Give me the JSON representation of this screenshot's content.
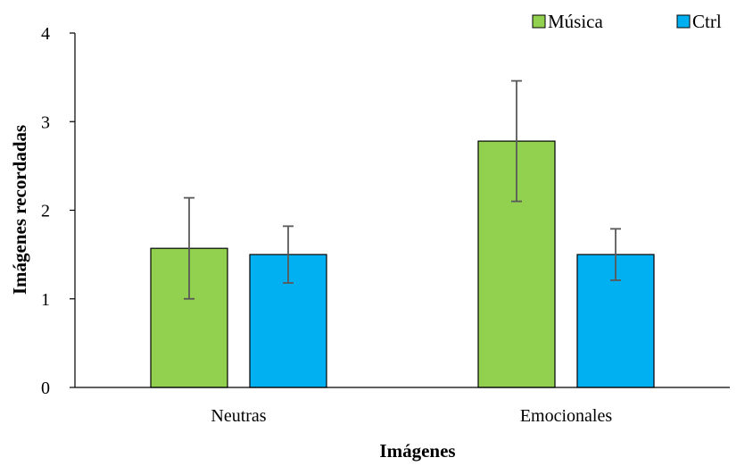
{
  "chart_data": {
    "type": "bar",
    "title": "",
    "xlabel": "Imágenes",
    "ylabel": "Imágenes recordadas",
    "categories": [
      "Neutras",
      "Emocionales"
    ],
    "series": [
      {
        "name": "Música",
        "color": "#92d050",
        "values": [
          1.57,
          2.78
        ],
        "errors": [
          0.57,
          0.68
        ]
      },
      {
        "name": "Ctrl",
        "color": "#00b0f0",
        "values": [
          1.5,
          1.5
        ],
        "errors": [
          0.32,
          0.29
        ]
      }
    ],
    "ylim": [
      0,
      4
    ],
    "yticks": [
      "0",
      "1",
      "2",
      "3",
      "4"
    ],
    "legend_position": "top-right",
    "grid": false
  }
}
